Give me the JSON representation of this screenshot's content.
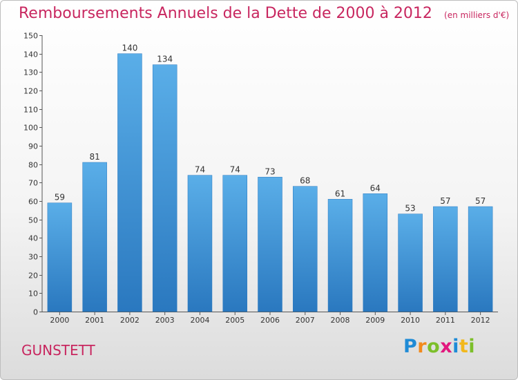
{
  "header": {
    "title": "Remboursements Annuels de la Dette de 2000 à 2012",
    "unit": "(en milliers d'€)"
  },
  "footer": {
    "town": "GUNSTETT",
    "logo_letters": [
      "P",
      "r",
      "o",
      "x",
      "i",
      "t",
      "i"
    ]
  },
  "colors": {
    "accent": "#c8265f",
    "bar_top": "#5aaee8",
    "bar_bottom": "#2a78bf"
  },
  "chart_data": {
    "type": "bar",
    "title": "Remboursements Annuels de la Dette de 2000 à 2012",
    "subtitle": "(en milliers d'€)",
    "categories": [
      "2000",
      "2001",
      "2002",
      "2003",
      "2004",
      "2005",
      "2006",
      "2007",
      "2008",
      "2009",
      "2010",
      "2011",
      "2012"
    ],
    "values": [
      59,
      81,
      140,
      134,
      74,
      74,
      73,
      68,
      61,
      64,
      53,
      57,
      57
    ],
    "data_labels": [
      "59",
      "81",
      "140",
      "134",
      "74",
      "74",
      "73",
      "68",
      "61",
      "64",
      "53",
      "57",
      "57"
    ],
    "ylim": [
      0,
      150
    ],
    "yticks": [
      0,
      10,
      20,
      30,
      40,
      50,
      60,
      70,
      80,
      90,
      100,
      110,
      120,
      130,
      140,
      150
    ],
    "xlabel": "",
    "ylabel": "",
    "grid": false,
    "legend": "none"
  }
}
